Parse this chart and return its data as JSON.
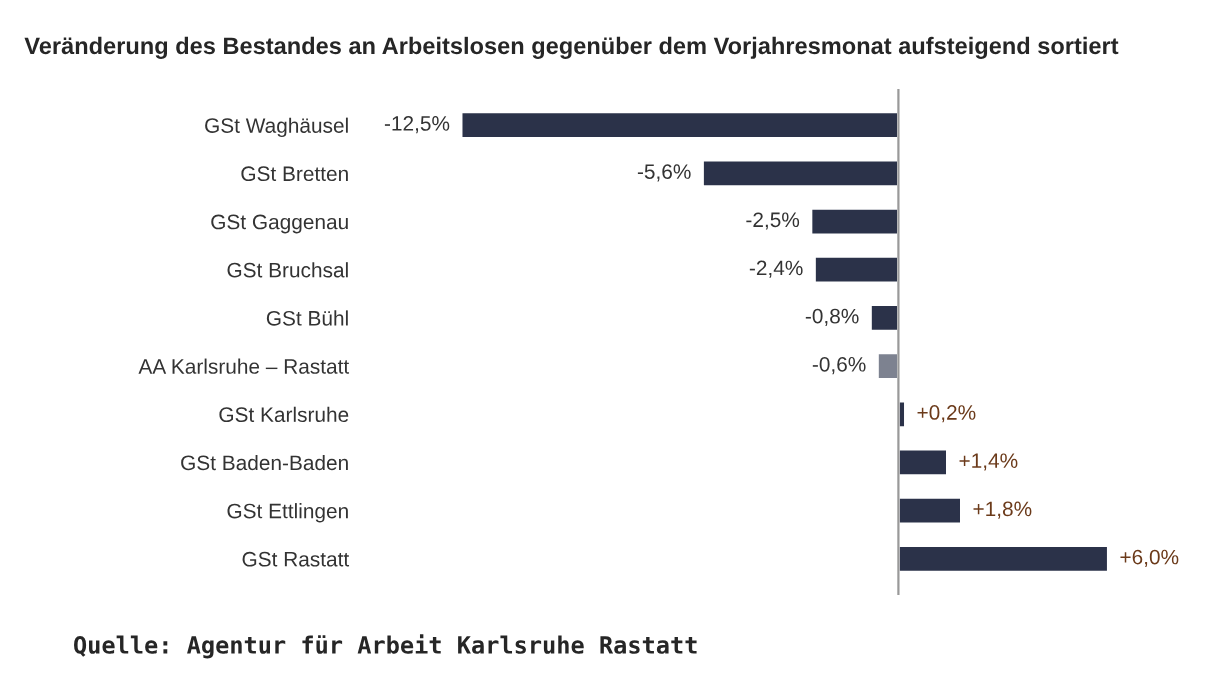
{
  "chart_data": {
    "type": "bar",
    "orientation": "horizontal",
    "title": "Veränderung des Bestandes an Arbeitslosen gegenüber dem Vorjahresmonat aufsteigend sortiert",
    "categories": [
      "GSt Waghäusel",
      "GSt Bretten",
      "GSt Gaggenau",
      "GSt Bruchsal",
      "GSt Bühl",
      "AA Karlsruhe – Rastatt",
      "GSt Karlsruhe",
      "GSt Baden-Baden",
      "GSt Ettlingen",
      "GSt Rastatt"
    ],
    "values": [
      -12.5,
      -5.6,
      -2.5,
      -2.4,
      -0.8,
      -0.6,
      0.2,
      1.4,
      1.8,
      6.0
    ],
    "value_labels": [
      "-12,5%",
      "-5,6%",
      "-2,5%",
      "-2,4%",
      "-0,8%",
      "-0,6%",
      "+0,2%",
      "+1,4%",
      "+1,8%",
      "+6,0%"
    ],
    "colors": [
      "#2b3249",
      "#2b3249",
      "#2b3249",
      "#2b3249",
      "#2b3249",
      "#7d8290",
      "#2b3249",
      "#2b3249",
      "#2b3249",
      "#2b3249"
    ],
    "grid": false,
    "legend": false,
    "annotations": [
      "Quelle: Agentur für Arbeit Karlsruhe Rastatt"
    ]
  }
}
